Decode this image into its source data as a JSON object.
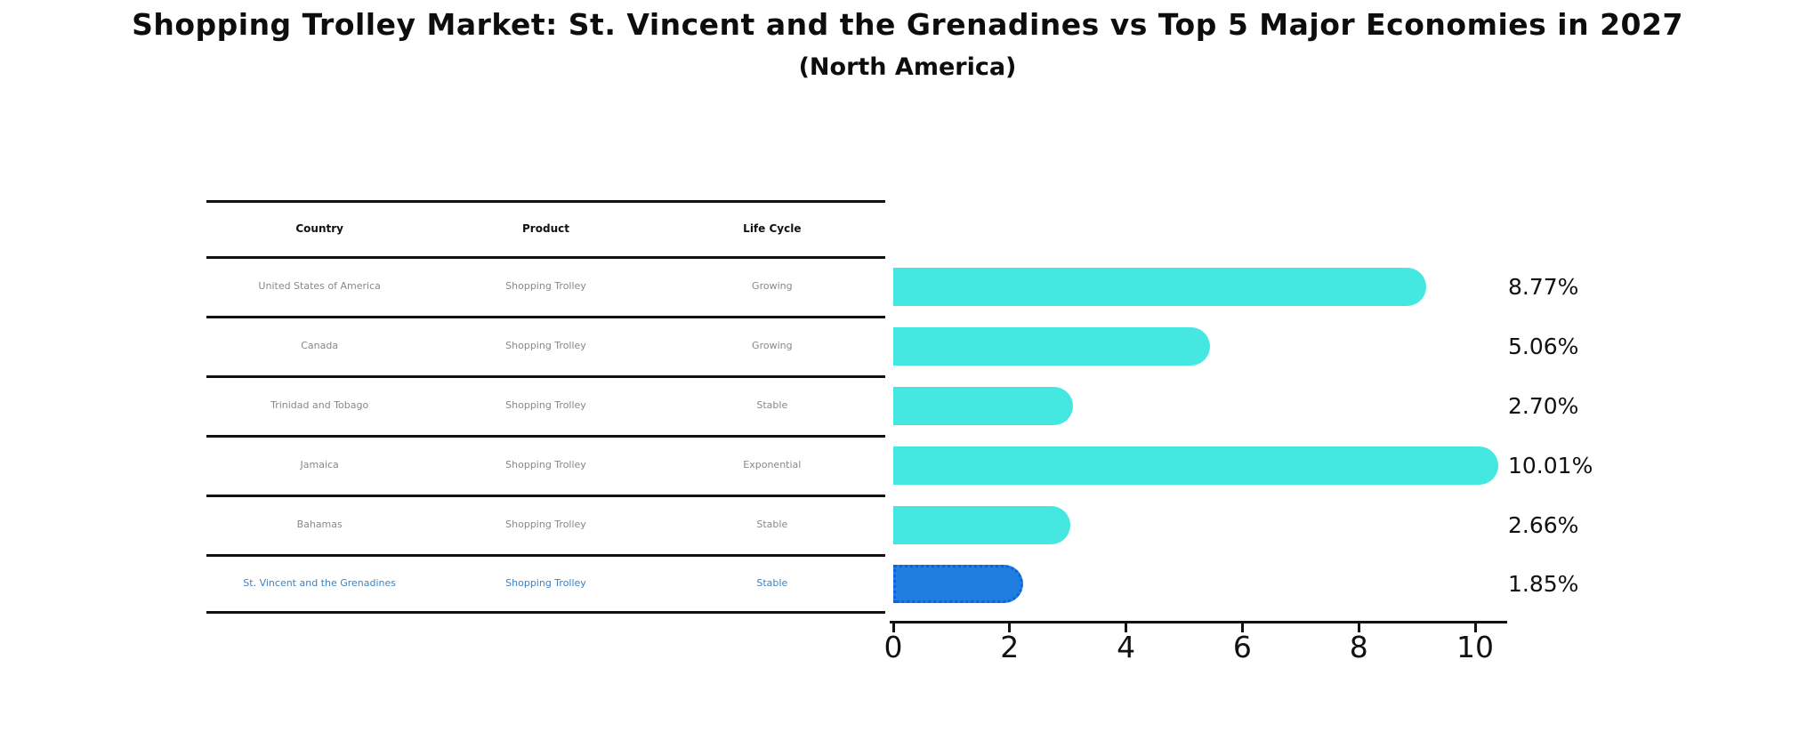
{
  "title": "Shopping Trolley Market: St. Vincent and the Grenadines vs Top 5 Major Economies in 2027",
  "subtitle": "(North America)",
  "table": {
    "headers": {
      "country": "Country",
      "product": "Product",
      "life_cycle": "Life Cycle"
    },
    "rows": [
      {
        "country": "United States of America",
        "product": "Shopping Trolley",
        "life_cycle": "Growing"
      },
      {
        "country": "Canada",
        "product": "Shopping Trolley",
        "life_cycle": "Growing"
      },
      {
        "country": "Trinidad and Tobago",
        "product": "Shopping Trolley",
        "life_cycle": "Stable"
      },
      {
        "country": "Jamaica",
        "product": "Shopping Trolley",
        "life_cycle": "Exponential"
      },
      {
        "country": "Bahamas",
        "product": "Shopping Trolley",
        "life_cycle": "Stable"
      },
      {
        "country": "St. Vincent and the Grenadines",
        "product": "Shopping Trolley",
        "life_cycle": "Stable"
      }
    ],
    "highlight_row_index": 5
  },
  "chart_data": {
    "type": "bar",
    "orientation": "horizontal",
    "title": "Shopping Trolley Market: St. Vincent and the Grenadines vs Top 5 Major Economies in 2027",
    "subtitle": "(North America)",
    "categories": [
      "United States of America",
      "Canada",
      "Trinidad and Tobago",
      "Jamaica",
      "Bahamas",
      "St. Vincent and the Grenadines"
    ],
    "values": [
      8.77,
      5.06,
      2.7,
      10.01,
      2.66,
      1.85
    ],
    "value_labels": [
      "8.77%",
      "5.06%",
      "2.70%",
      "10.01%",
      "2.66%",
      "1.85%"
    ],
    "x_ticks": [
      0,
      2,
      4,
      6,
      8,
      10
    ],
    "xlim": [
      0,
      10.5
    ],
    "grid": false,
    "legend": false,
    "bar_color": "#45e7e1",
    "highlight_color": "#1e7fe0",
    "highlight_index": 5
  },
  "colors": {
    "bar_cyan": "#45e7e1",
    "bar_blue": "#1e7fe0",
    "highlight_text_blue": "#3b82c4",
    "cell_text_gray": "#888888",
    "line_black": "#111111"
  }
}
